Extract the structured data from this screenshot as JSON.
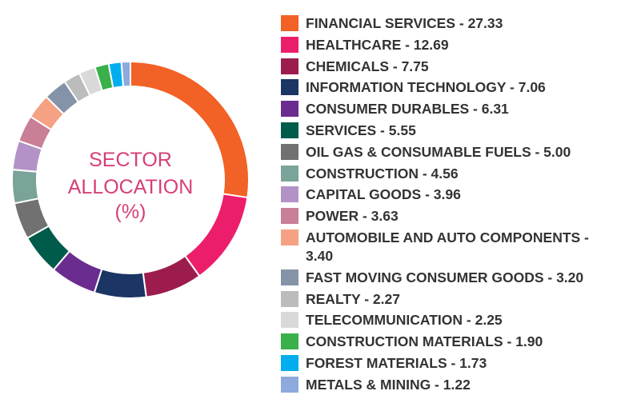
{
  "chart_data": {
    "type": "pie",
    "title": "SECTOR ALLOCATION (%)",
    "center_label_lines": [
      "SECTOR",
      "ALLOCATION",
      "(%)"
    ],
    "legend_position": "right",
    "slices": [
      {
        "label": "FINANCIAL SERVICES",
        "value": 27.33,
        "display": "27.33",
        "color": "#f26125"
      },
      {
        "label": "HEALTHCARE",
        "value": 12.69,
        "display": "12.69",
        "color": "#ec1e6b"
      },
      {
        "label": "CHEMICALS",
        "value": 7.75,
        "display": "7.75",
        "color": "#9c1d4d"
      },
      {
        "label": "INFORMATION TECHNOLOGY",
        "value": 7.06,
        "display": "7.06",
        "color": "#1b3564"
      },
      {
        "label": "CONSUMER DURABLES",
        "value": 6.31,
        "display": "6.31",
        "color": "#6a2d8f"
      },
      {
        "label": "SERVICES",
        "value": 5.55,
        "display": "5.55",
        "color": "#005b4b"
      },
      {
        "label": "OIL GAS & CONSUMABLE FUELS",
        "value": 5.0,
        "display": "5.00",
        "color": "#717171"
      },
      {
        "label": "CONSTRUCTION",
        "value": 4.56,
        "display": "4.56",
        "color": "#7aa39a"
      },
      {
        "label": "CAPITAL GOODS",
        "value": 3.96,
        "display": "3.96",
        "color": "#b393c6"
      },
      {
        "label": "POWER",
        "value": 3.63,
        "display": "3.63",
        "color": "#c97f96"
      },
      {
        "label": "AUTOMOBILE AND AUTO COMPONENTS",
        "value": 3.4,
        "display": "3.40",
        "color": "#f4a283"
      },
      {
        "label": "FAST MOVING CONSUMER GOODS",
        "value": 3.2,
        "display": "3.20",
        "color": "#8593a8"
      },
      {
        "label": "REALTY",
        "value": 2.27,
        "display": "2.27",
        "color": "#bcbcbc"
      },
      {
        "label": "TELECOMMUNICATION",
        "value": 2.25,
        "display": "2.25",
        "color": "#d9d9d9"
      },
      {
        "label": "CONSTRUCTION MATERIALS",
        "value": 1.9,
        "display": "1.90",
        "color": "#3ab04b"
      },
      {
        "label": "FOREST MATERIALS",
        "value": 1.73,
        "display": "1.73",
        "color": "#00aeef"
      },
      {
        "label": "METALS & MINING",
        "value": 1.22,
        "display": "1.22",
        "color": "#8ea9dc"
      }
    ]
  }
}
